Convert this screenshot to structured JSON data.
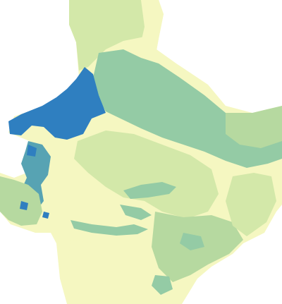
{
  "map": {
    "background_color": "#ffffff",
    "classes": [
      {
        "name": "pale-yellow",
        "color": "#f5f7c1"
      },
      {
        "name": "light-green",
        "color": "#d3e8a9"
      },
      {
        "name": "medium-green",
        "color": "#b6d9a0"
      },
      {
        "name": "teal-green",
        "color": "#94cba5"
      },
      {
        "name": "blue-teal",
        "color": "#57a3b3"
      },
      {
        "name": "blue",
        "color": "#2f7fc0"
      }
    ]
  }
}
